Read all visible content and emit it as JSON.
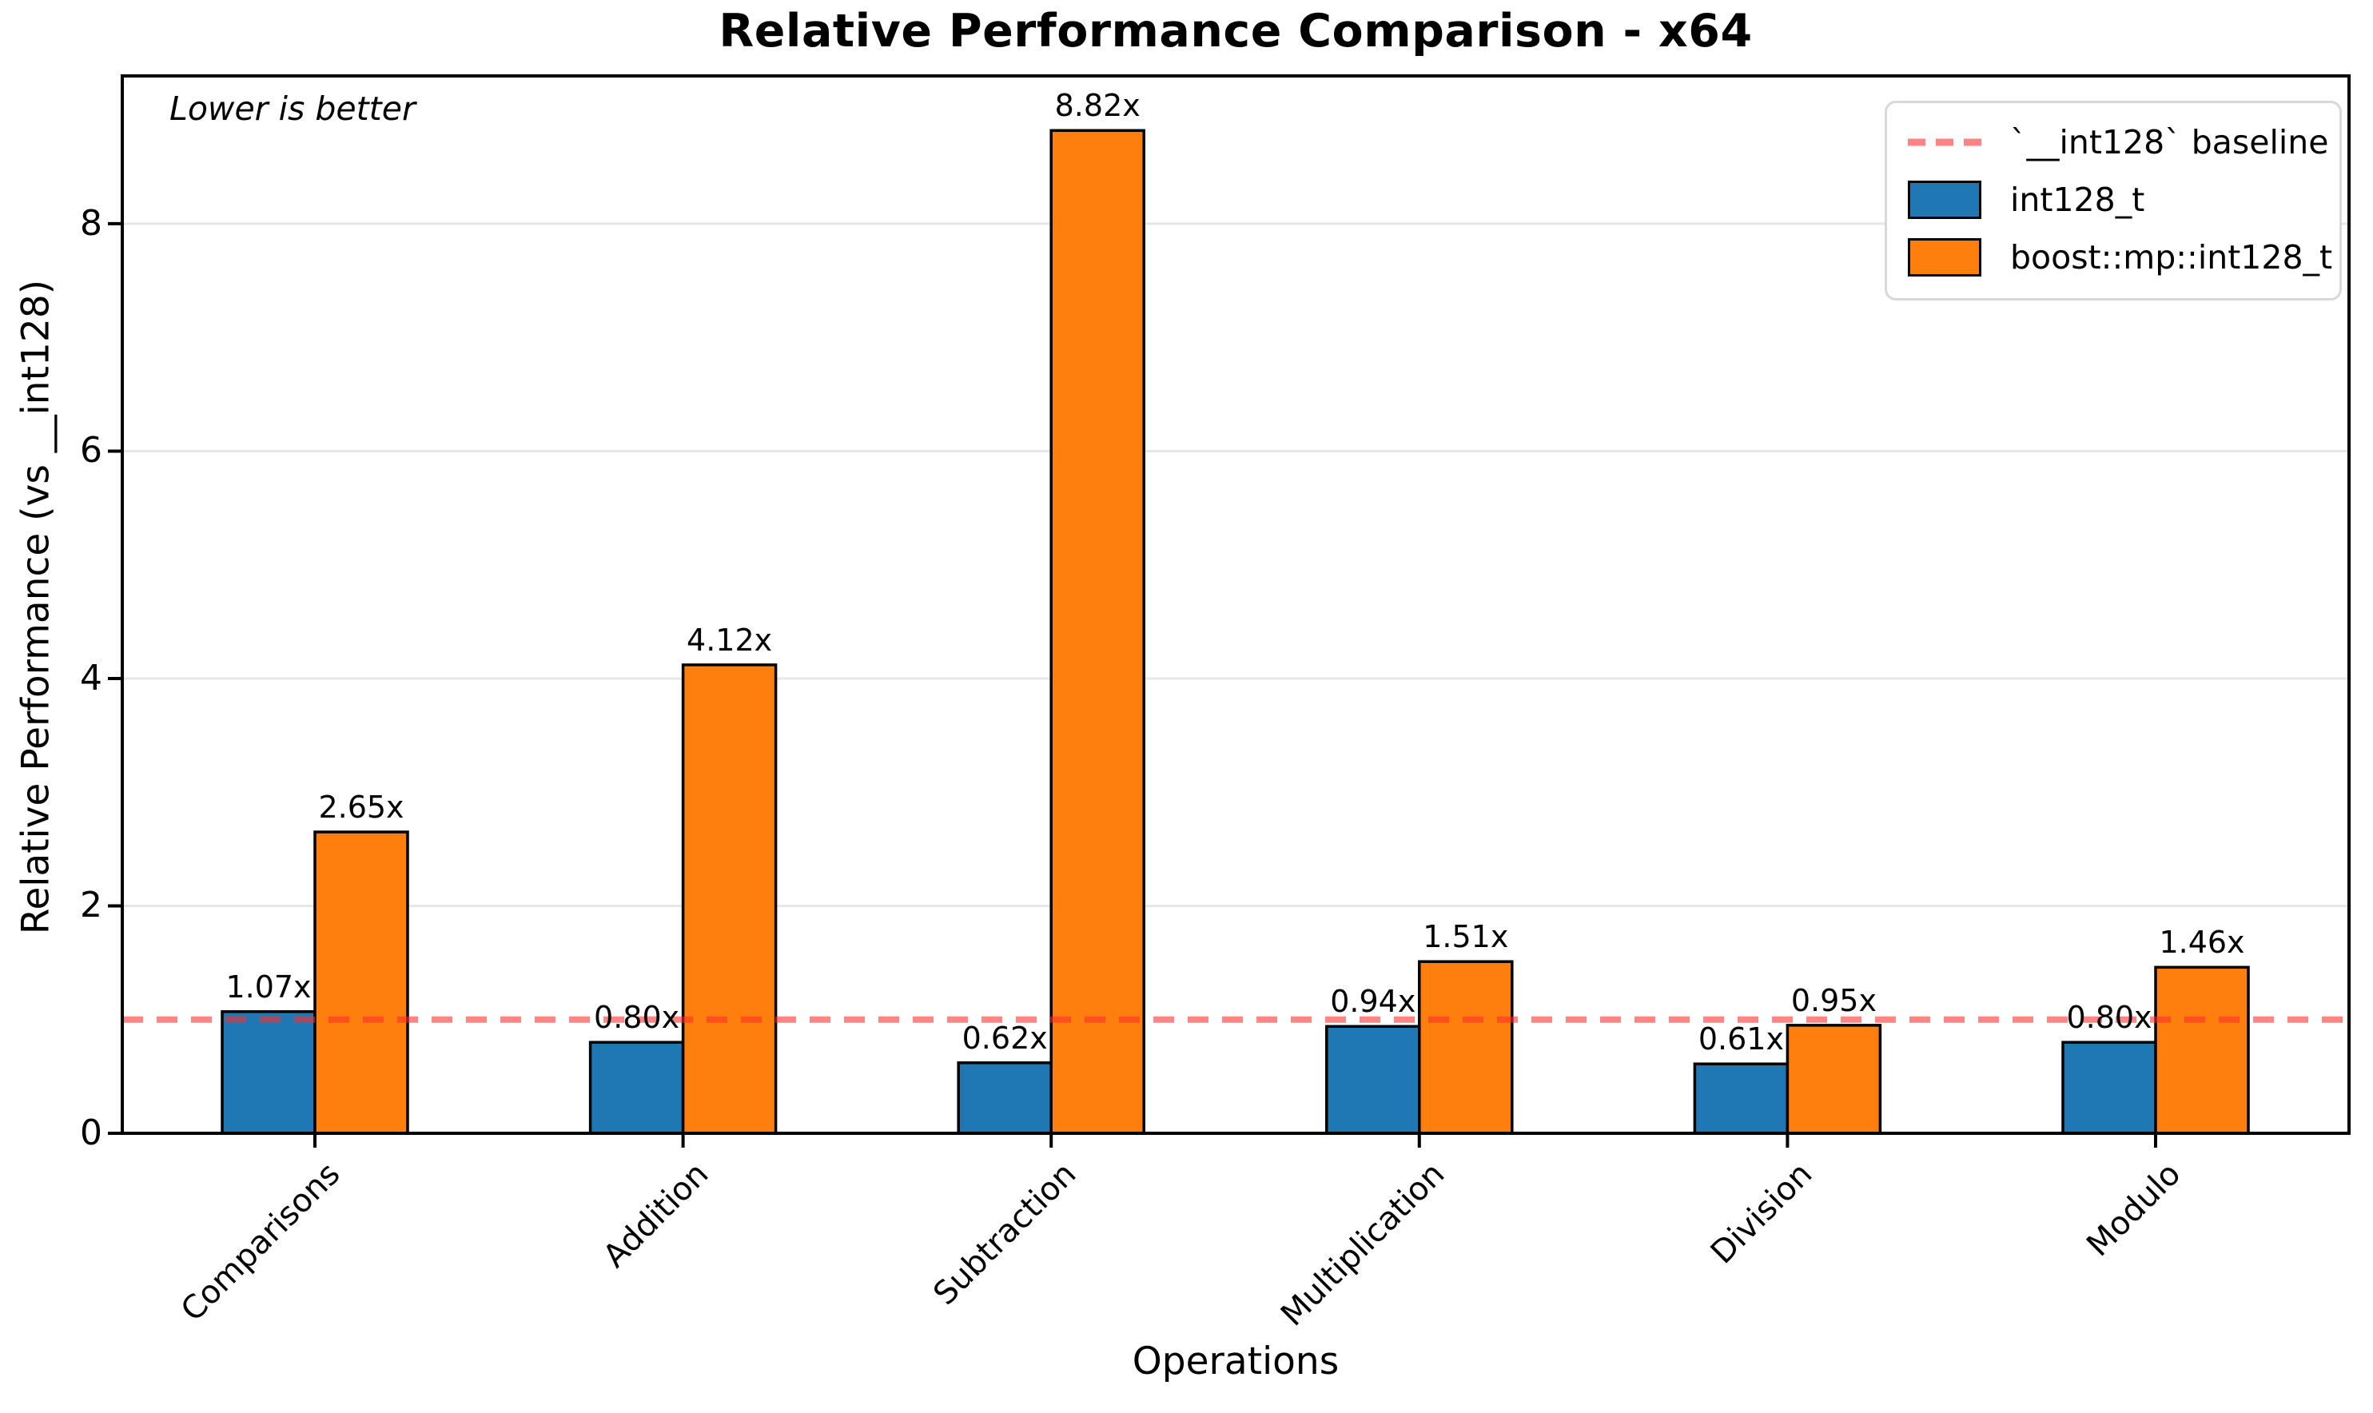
{
  "chart_data": {
    "type": "bar",
    "title": "Relative Performance Comparison - x64",
    "xlabel": "Operations",
    "ylabel": "Relative Performance (vs __int128)",
    "annotation": "Lower is better",
    "categories": [
      "Comparisons",
      "Addition",
      "Subtraction",
      "Multiplication",
      "Division",
      "Modulo"
    ],
    "series": [
      {
        "name": "int128_t",
        "color": "#1f77b4",
        "values": [
          1.07,
          0.8,
          0.62,
          0.94,
          0.61,
          0.8
        ],
        "labels": [
          "1.07x",
          "0.80x",
          "0.62x",
          "0.94x",
          "0.61x",
          "0.80x"
        ]
      },
      {
        "name": "boost::mp::int128_t",
        "color": "#ff7f0e",
        "values": [
          2.65,
          4.12,
          8.82,
          1.51,
          0.95,
          1.46
        ],
        "labels": [
          "2.65x",
          "4.12x",
          "8.82x",
          "1.51x",
          "0.95x",
          "1.46x"
        ]
      }
    ],
    "baseline": {
      "value": 1.0,
      "label": "`__int128` baseline",
      "color": "#ff2d2d",
      "opacity": 0.58
    },
    "yticks": [
      "0",
      "2",
      "4",
      "6",
      "8"
    ],
    "ytick_values": [
      0,
      2,
      4,
      6,
      8
    ],
    "ylim": [
      0,
      9.3
    ],
    "grid": true,
    "grid_color": "#e7e7e7",
    "bar_edge_color": "#000000",
    "legend_position": "upper right"
  }
}
